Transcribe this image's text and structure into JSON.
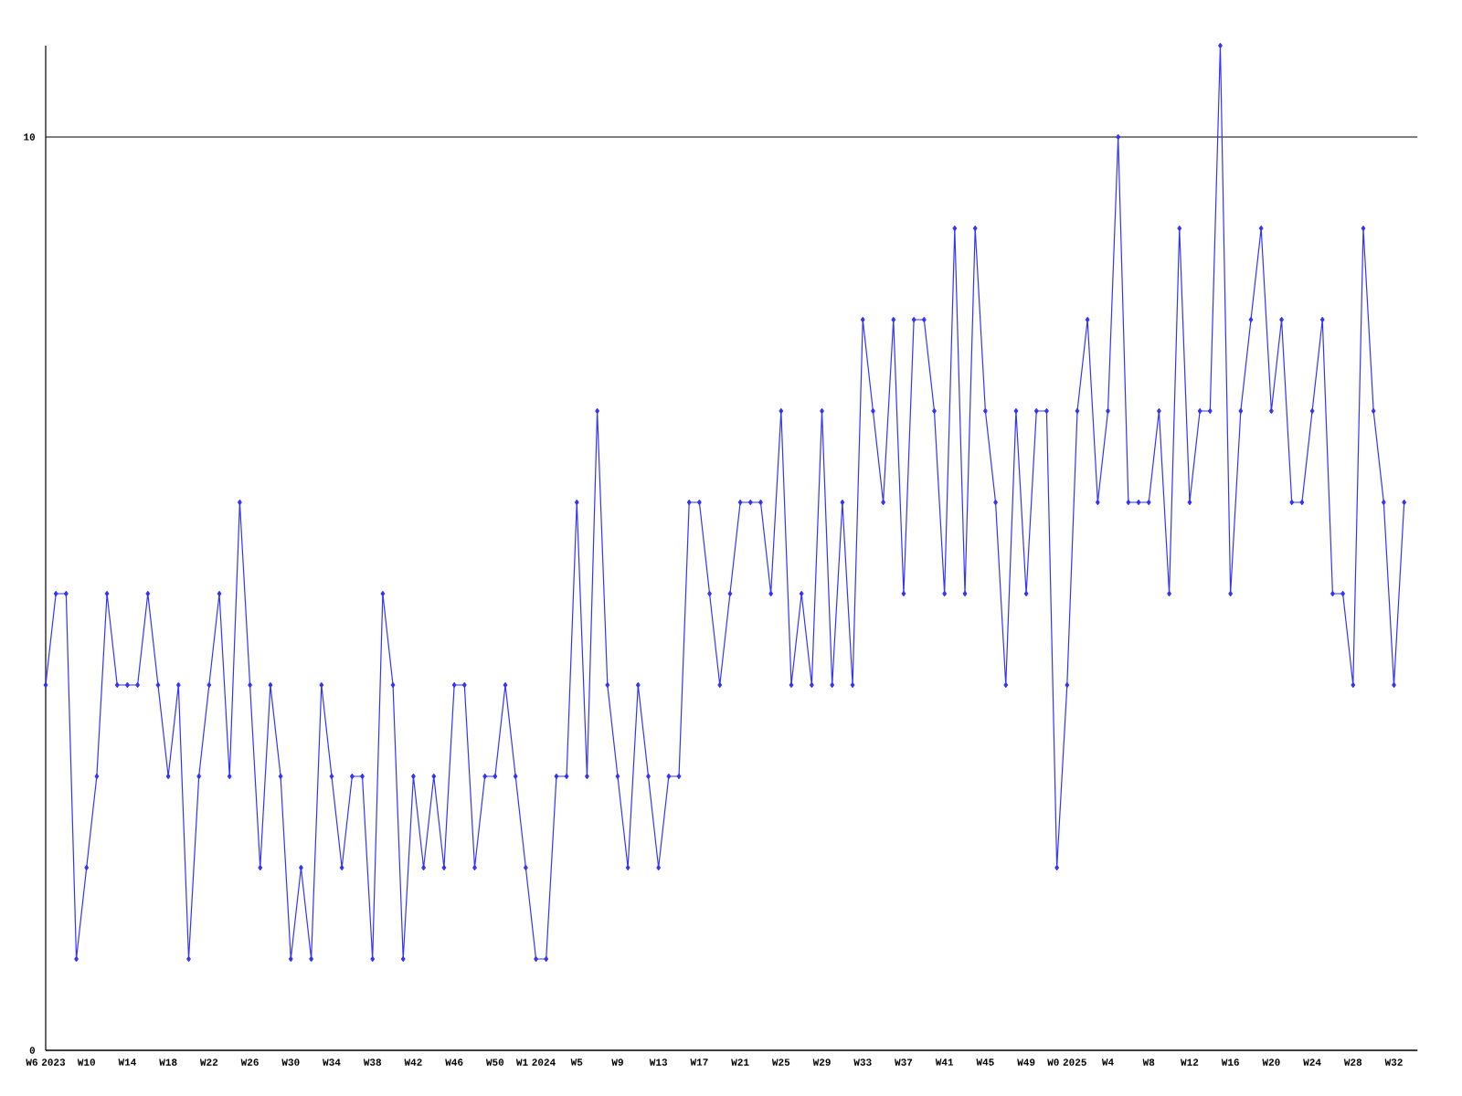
{
  "chart_data": {
    "type": "line",
    "color": "#3333ff",
    "marker": "diamond",
    "grid": "y",
    "ylim": [
      0,
      11
    ],
    "yticks": [
      0,
      10
    ],
    "categories": [
      "W6 2023",
      null,
      null,
      null,
      "W10",
      null,
      null,
      null,
      "W14",
      null,
      null,
      null,
      "W18",
      null,
      null,
      null,
      "W22",
      null,
      null,
      null,
      "W26",
      null,
      null,
      null,
      "W30",
      null,
      null,
      null,
      "W34",
      null,
      null,
      null,
      "W38",
      null,
      null,
      null,
      "W42",
      null,
      null,
      null,
      "W46",
      null,
      null,
      null,
      "W50",
      null,
      null,
      null,
      "W1 2024",
      null,
      null,
      null,
      "W5",
      null,
      null,
      null,
      "W9",
      null,
      null,
      null,
      "W13",
      null,
      null,
      null,
      "W17",
      null,
      null,
      null,
      "W21",
      null,
      null,
      null,
      "W25",
      null,
      null,
      null,
      "W29",
      null,
      null,
      null,
      "W33",
      null,
      null,
      null,
      "W37",
      null,
      null,
      null,
      "W41",
      null,
      null,
      null,
      "W45",
      null,
      null,
      null,
      "W49",
      null,
      null,
      null,
      "W0 2025",
      null,
      null,
      null,
      "W4",
      null,
      null,
      null,
      "W8",
      null,
      null,
      null,
      "W12",
      null,
      null,
      null,
      "W16",
      null,
      null,
      null,
      "W20",
      null,
      null,
      null,
      "W24",
      null,
      null,
      null,
      "W28",
      null,
      null,
      null,
      "W32",
      null
    ],
    "values": [
      4,
      5,
      5,
      1,
      2,
      3,
      5,
      4,
      4,
      4,
      5,
      4,
      3,
      4,
      1,
      3,
      4,
      5,
      3,
      6,
      4,
      2,
      4,
      3,
      1,
      2,
      1,
      4,
      3,
      2,
      3,
      3,
      1,
      5,
      4,
      1,
      3,
      2,
      3,
      2,
      4,
      4,
      2,
      3,
      3,
      4,
      3,
      2,
      1,
      1,
      3,
      3,
      6,
      3,
      7,
      4,
      3,
      2,
      4,
      3,
      2,
      3,
      3,
      6,
      6,
      5,
      4,
      5,
      6,
      6,
      6,
      5,
      7,
      4,
      5,
      4,
      7,
      4,
      6,
      4,
      8,
      7,
      6,
      8,
      5,
      8,
      8,
      7,
      5,
      9,
      5,
      9,
      7,
      6,
      4,
      7,
      5,
      7,
      7,
      2,
      4,
      7,
      8,
      6,
      7,
      10,
      6,
      6,
      6,
      7,
      5,
      9,
      6,
      7,
      7,
      11,
      5,
      7,
      8,
      9,
      7,
      8,
      6,
      6,
      7,
      8,
      5,
      5,
      4,
      9,
      7,
      6,
      4,
      6
    ]
  }
}
